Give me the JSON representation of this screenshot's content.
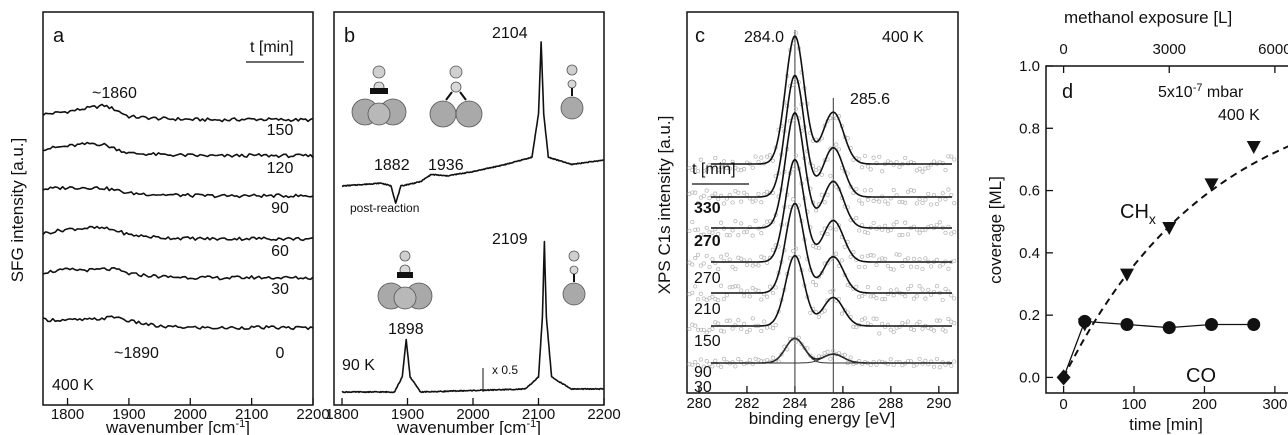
{
  "panels": {
    "a": {
      "letter": "a",
      "ylabel": "SFG intensity [a.u.]",
      "xlabel_main": "wavenumber [cm",
      "xlabel_sup": "-1",
      "xlabel_end": "]",
      "xticks": [
        "1800",
        "1900",
        "2000",
        "2100",
        "2200"
      ],
      "time_header": "t [min]",
      "time_labels": [
        "150",
        "120",
        "90",
        "60",
        "30",
        "0"
      ],
      "peak_top": "~1860",
      "peak_bottom": "~1890",
      "temp": "400 K"
    },
    "b": {
      "letter": "b",
      "xlabel_main": "wavenumber [cm",
      "xlabel_sup": "-1",
      "xlabel_end": "]",
      "xticks": [
        "1800",
        "1900",
        "2000",
        "2100",
        "2200"
      ],
      "peak_top_ontop": "2104",
      "peak_top_bridge1": "1882",
      "peak_top_bridge2": "1936",
      "post_reaction": "post-reaction",
      "peak_bottom_ontop": "2109",
      "peak_bottom_bridge": "1898",
      "temp": "90 K",
      "scale": "x 0.5"
    },
    "c": {
      "letter": "c",
      "ylabel": "XPS C1s intensity [a.u.]",
      "xlabel": "binding energy [eV]",
      "xticks": [
        "280",
        "282",
        "284",
        "286",
        "288",
        "290"
      ],
      "time_header": "t [min]",
      "time_labels": [
        "330",
        "270",
        "270",
        "210",
        "150",
        "90",
        "30"
      ],
      "peak1": "284.0",
      "peak2": "285.6",
      "temp": "400 K"
    },
    "d": {
      "letter": "d",
      "ylabel": "coverage [ML]",
      "xlabel": "time [min]",
      "top_xlabel": "methanol exposure [L]",
      "yticks": [
        "0.0",
        "0.2",
        "0.4",
        "0.6",
        "0.8",
        "1.0"
      ],
      "xticks": [
        "0",
        "100",
        "200",
        "300"
      ],
      "top_xticks": [
        "0",
        "3000",
        "6000"
      ],
      "pressure_main": "5x10",
      "pressure_exp": "-7",
      "pressure_unit": " mbar",
      "temp": "400 K",
      "label_chx": "CH",
      "label_chx_sub": "x",
      "label_co": "CO"
    }
  },
  "chart_data": [
    {
      "type": "line",
      "panel": "a",
      "xlabel": "wavenumber [cm-1]",
      "ylabel": "SFG intensity [a.u.]",
      "xlim": [
        1760,
        2200
      ],
      "series": [
        {
          "name": "150",
          "x": [
            1760,
            1800,
            1840,
            1860,
            1880,
            1900,
            1950,
            2000,
            2050,
            2100,
            2150,
            2200
          ],
          "y": [
            0.2,
            0.3,
            0.45,
            0.52,
            0.35,
            0.12,
            0.05,
            0.02,
            0.0,
            0.03,
            0.01,
            0.0
          ]
        },
        {
          "name": "120",
          "x": [
            1760,
            1800,
            1840,
            1860,
            1880,
            1900,
            1950,
            2000,
            2050,
            2100,
            2150,
            2200
          ],
          "y": [
            0.25,
            0.35,
            0.45,
            0.4,
            0.25,
            0.1,
            0.05,
            0.02,
            0.0,
            0.02,
            0.01,
            0.0
          ]
        },
        {
          "name": "90",
          "x": [
            1760,
            1800,
            1840,
            1860,
            1880,
            1900,
            1950,
            2000,
            2050,
            2100,
            2150,
            2200
          ],
          "y": [
            0.25,
            0.3,
            0.3,
            0.28,
            0.2,
            0.1,
            0.05,
            0.02,
            0.0,
            0.01,
            0.01,
            0.0
          ]
        },
        {
          "name": "60",
          "x": [
            1760,
            1800,
            1840,
            1860,
            1880,
            1900,
            1950,
            2000,
            2050,
            2100,
            2150,
            2200
          ],
          "y": [
            0.2,
            0.35,
            0.4,
            0.38,
            0.3,
            0.15,
            0.05,
            0.02,
            0.0,
            0.02,
            0.01,
            0.0
          ]
        },
        {
          "name": "30",
          "x": [
            1760,
            1800,
            1840,
            1860,
            1880,
            1900,
            1950,
            2000,
            2050,
            2100,
            2150,
            2200
          ],
          "y": [
            0.2,
            0.3,
            0.28,
            0.32,
            0.3,
            0.15,
            0.05,
            0.02,
            0.0,
            0.02,
            0.01,
            0.0
          ]
        },
        {
          "name": "0",
          "x": [
            1760,
            1800,
            1840,
            1860,
            1880,
            1900,
            1950,
            2000,
            2050,
            2100,
            2150,
            2200
          ],
          "y": [
            0.3,
            0.28,
            0.3,
            0.35,
            0.4,
            0.25,
            0.05,
            0.02,
            0.0,
            0.02,
            0.01,
            0.0
          ]
        }
      ]
    },
    {
      "type": "line",
      "panel": "b",
      "xlabel": "wavenumber [cm-1]",
      "xlim": [
        1800,
        2200
      ],
      "series": [
        {
          "name": "post-reaction",
          "x": [
            1800,
            1860,
            1875,
            1882,
            1890,
            1920,
            1936,
            1960,
            2000,
            2050,
            2090,
            2100,
            2104,
            2108,
            2115,
            2150,
            2200
          ],
          "y": [
            0.0,
            0.02,
            0.0,
            -0.12,
            0.0,
            0.03,
            0.08,
            0.07,
            0.1,
            0.15,
            0.2,
            0.5,
            1.0,
            0.5,
            0.2,
            0.15,
            0.18
          ]
        },
        {
          "name": "90 K",
          "x": [
            1800,
            1880,
            1892,
            1898,
            1904,
            1920,
            2000,
            2080,
            2100,
            2106,
            2109,
            2112,
            2120,
            2150,
            2200
          ],
          "y": [
            0.0,
            0.0,
            0.1,
            0.35,
            0.1,
            0.0,
            0.01,
            0.02,
            0.1,
            0.5,
            1.0,
            0.5,
            0.1,
            0.02,
            0.02
          ]
        }
      ]
    },
    {
      "type": "line",
      "panel": "c",
      "xlabel": "binding energy [eV]",
      "ylabel": "XPS C1s intensity [a.u.]",
      "xlim": [
        279.5,
        290.8
      ],
      "peak_positions": [
        284.0,
        285.6
      ],
      "series": [
        {
          "name": "330",
          "peak1_height": 1.0,
          "peak2_height": 0.45
        },
        {
          "name": "270",
          "peak1_height": 0.95,
          "peak2_height": 0.45
        },
        {
          "name": "270",
          "peak1_height": 0.9,
          "peak2_height": 0.45
        },
        {
          "name": "210",
          "peak1_height": 0.8,
          "peak2_height": 0.45
        },
        {
          "name": "150",
          "peak1_height": 0.7,
          "peak2_height": 0.45
        },
        {
          "name": "90",
          "peak1_height": 0.55,
          "peak2_height": 0.45
        },
        {
          "name": "30",
          "peak1_height": 0.35,
          "peak2_height": 0.4
        }
      ]
    },
    {
      "type": "scatter",
      "panel": "d",
      "xlabel": "time [min]",
      "ylabel": "coverage [ML]",
      "top_xlabel": "methanol exposure [L]",
      "xlim": [
        -25,
        330
      ],
      "ylim": [
        -0.05,
        1.0
      ],
      "series": [
        {
          "name": "CH",
          "marker": "triangle-down",
          "x": [
            0,
            30,
            90,
            150,
            210,
            270
          ],
          "y": [
            0.0,
            0.17,
            0.33,
            0.48,
            0.62,
            0.74
          ]
        },
        {
          "name": "CO",
          "marker": "circle",
          "x": [
            0,
            30,
            90,
            150,
            210,
            270
          ],
          "y": [
            0.0,
            0.18,
            0.17,
            0.16,
            0.17,
            0.17
          ]
        }
      ]
    }
  ]
}
